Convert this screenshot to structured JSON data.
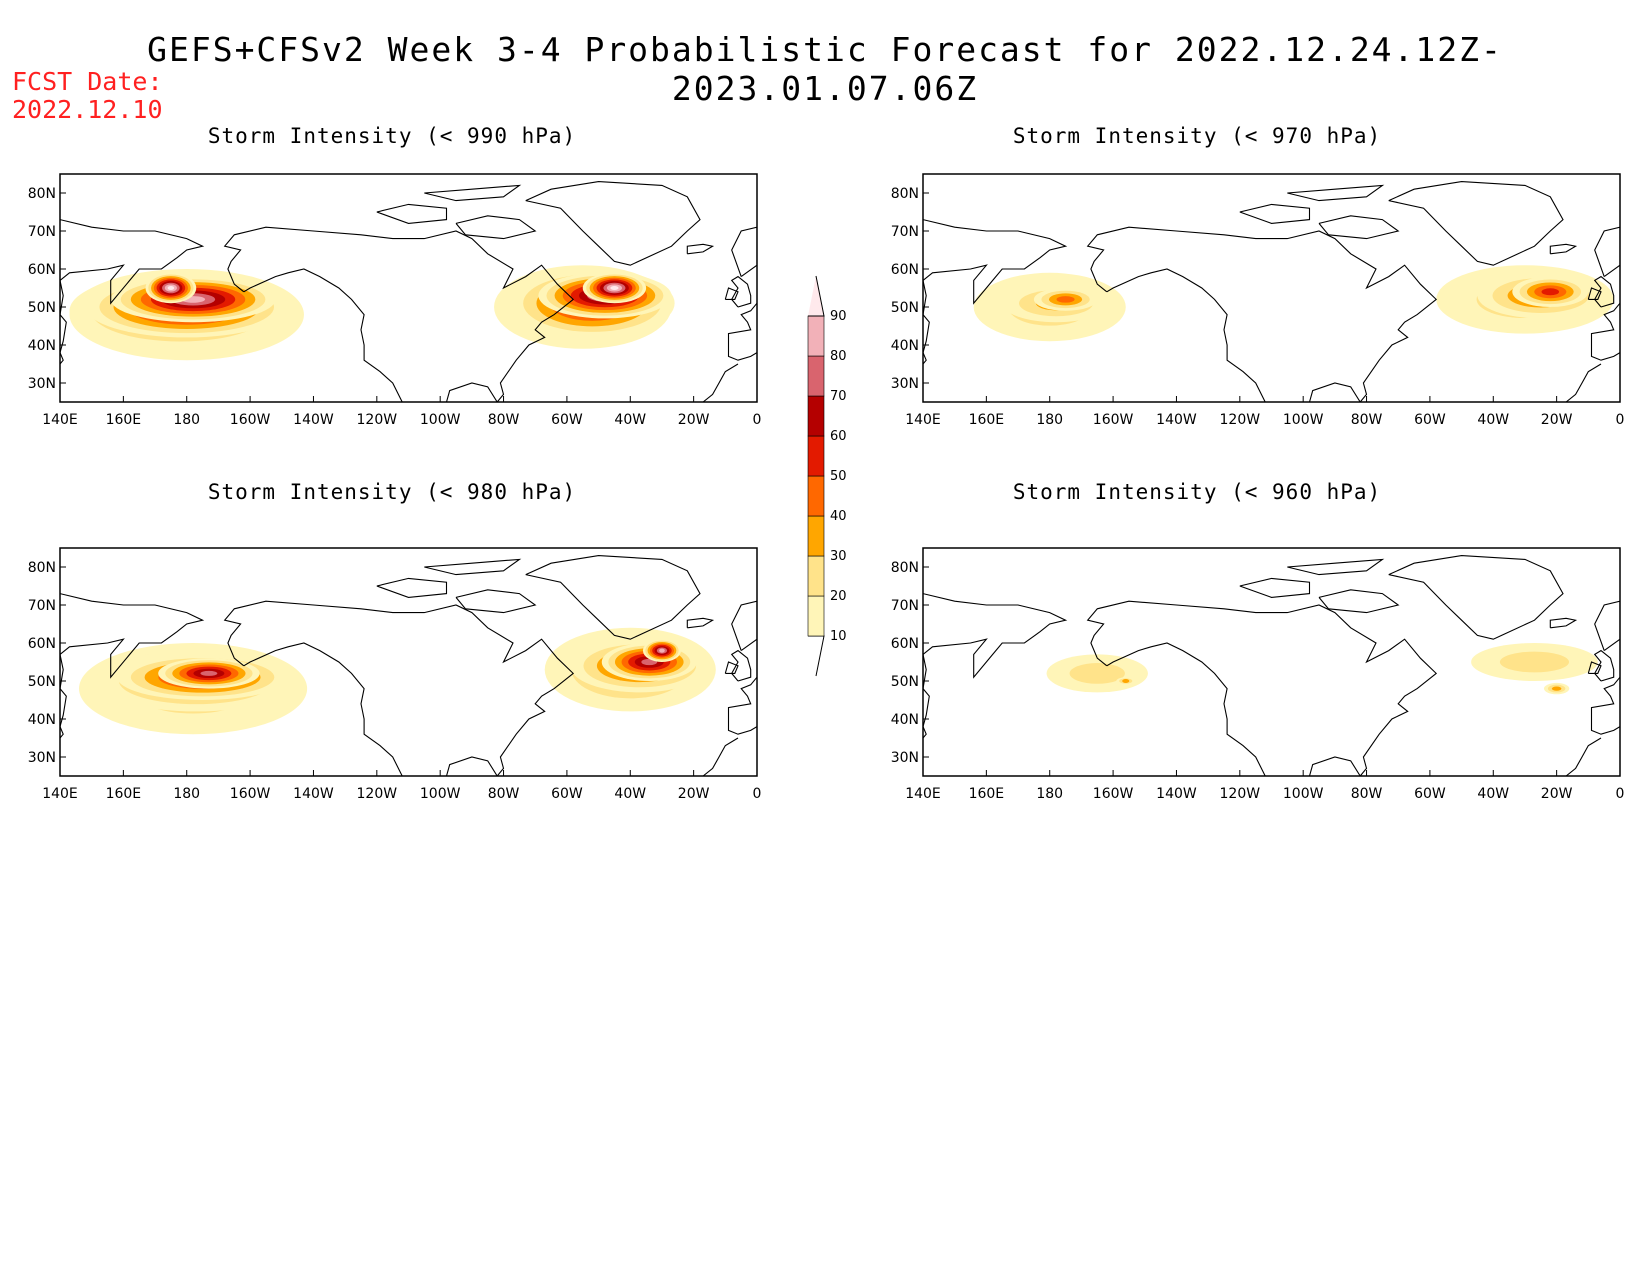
{
  "title": "GEFS+CFSv2 Week 3-4 Probabilistic Forecast for 2022.12.24.12Z-2023.01.07.06Z",
  "fcst_label": "FCST Date:",
  "fcst_date": "2022.12.10",
  "lon_labels": [
    "140E",
    "160E",
    "180",
    "160W",
    "140W",
    "120W",
    "100W",
    "80W",
    "60W",
    "40W",
    "20W",
    "0"
  ],
  "lat_labels": [
    "80N",
    "70N",
    "60N",
    "50N",
    "40N",
    "30N"
  ],
  "colorbar": {
    "levels": [
      "10",
      "20",
      "30",
      "40",
      "50",
      "60",
      "70",
      "80",
      "90"
    ],
    "colors": [
      "#fff5b8",
      "#ffe38a",
      "#ffa600",
      "#ff6800",
      "#e31a00",
      "#b40000",
      "#d9646e",
      "#f2b1b8",
      "#ffe9ec"
    ]
  },
  "panels": [
    {
      "title": "Storm Intensity (< 990 hPa)",
      "blobs": [
        {
          "lon": 180,
          "lat": 48,
          "rx": 37,
          "ry": 12,
          "level": 2
        },
        {
          "lon": 178,
          "lat": 49,
          "rx": 35,
          "ry": 10,
          "level": 4
        },
        {
          "lon": 180,
          "lat": 50,
          "rx": 32,
          "ry": 8,
          "level": 6
        },
        {
          "lon": 182,
          "lat": 52,
          "rx": 26,
          "ry": 6,
          "level": 7
        },
        {
          "lon": 175,
          "lat": 55,
          "rx": 8,
          "ry": 4,
          "level": 8
        },
        {
          "lon": 305,
          "lat": 50,
          "rx": 28,
          "ry": 11,
          "level": 2
        },
        {
          "lon": 308,
          "lat": 51,
          "rx": 26,
          "ry": 9,
          "level": 5
        },
        {
          "lon": 312,
          "lat": 53,
          "rx": 21,
          "ry": 6,
          "level": 7
        },
        {
          "lon": 315,
          "lat": 55,
          "rx": 10,
          "ry": 4,
          "level": 8
        }
      ]
    },
    {
      "title": "Storm Intensity (< 970 hPa)",
      "blobs": [
        {
          "lon": 180,
          "lat": 50,
          "rx": 24,
          "ry": 9,
          "level": 1
        },
        {
          "lon": 182,
          "lat": 51,
          "rx": 17,
          "ry": 5,
          "level": 2
        },
        {
          "lon": 185,
          "lat": 52,
          "rx": 10,
          "ry": 3,
          "level": 3
        },
        {
          "lon": 330,
          "lat": 52,
          "rx": 28,
          "ry": 9,
          "level": 1
        },
        {
          "lon": 335,
          "lat": 53,
          "rx": 20,
          "ry": 6,
          "level": 3
        },
        {
          "lon": 338,
          "lat": 54,
          "rx": 12,
          "ry": 4,
          "level": 4
        }
      ]
    },
    {
      "title": "Storm Intensity (< 980 hPa)",
      "blobs": [
        {
          "lon": 182,
          "lat": 48,
          "rx": 36,
          "ry": 12,
          "level": 1
        },
        {
          "lon": 183,
          "lat": 50,
          "rx": 32,
          "ry": 8,
          "level": 3
        },
        {
          "lon": 185,
          "lat": 51,
          "rx": 27,
          "ry": 6,
          "level": 5
        },
        {
          "lon": 187,
          "lat": 52,
          "rx": 16,
          "ry": 4,
          "level": 6
        },
        {
          "lon": 320,
          "lat": 53,
          "rx": 27,
          "ry": 11,
          "level": 2
        },
        {
          "lon": 323,
          "lat": 54,
          "rx": 22,
          "ry": 7,
          "level": 4
        },
        {
          "lon": 326,
          "lat": 55,
          "rx": 15,
          "ry": 5,
          "level": 6
        },
        {
          "lon": 330,
          "lat": 58,
          "rx": 6,
          "ry": 3,
          "level": 7
        }
      ]
    },
    {
      "title": "Storm Intensity (< 960 hPa)",
      "blobs": [
        {
          "lon": 195,
          "lat": 52,
          "rx": 16,
          "ry": 5,
          "level": 1
        },
        {
          "lon": 204,
          "lat": 50,
          "rx": 3,
          "ry": 1,
          "level": 2
        },
        {
          "lon": 333,
          "lat": 55,
          "rx": 20,
          "ry": 5,
          "level": 1
        },
        {
          "lon": 340,
          "lat": 48,
          "rx": 4,
          "ry": 1.5,
          "level": 2
        }
      ]
    }
  ]
}
